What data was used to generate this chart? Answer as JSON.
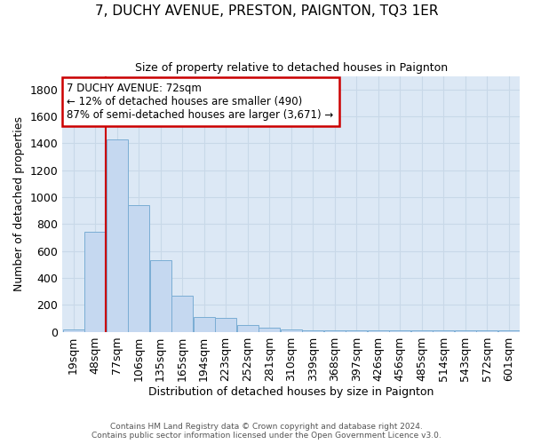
{
  "title": "7, DUCHY AVENUE, PRESTON, PAIGNTON, TQ3 1ER",
  "subtitle": "Size of property relative to detached houses in Paignton",
  "xlabel": "Distribution of detached houses by size in Paignton",
  "ylabel": "Number of detached properties",
  "footer_line1": "Contains HM Land Registry data © Crown copyright and database right 2024.",
  "footer_line2": "Contains public sector information licensed under the Open Government Licence v3.0.",
  "categories": [
    "19sqm",
    "48sqm",
    "77sqm",
    "106sqm",
    "135sqm",
    "165sqm",
    "194sqm",
    "223sqm",
    "252sqm",
    "281sqm",
    "310sqm",
    "339sqm",
    "368sqm",
    "397sqm",
    "426sqm",
    "456sqm",
    "485sqm",
    "514sqm",
    "543sqm",
    "572sqm",
    "601sqm"
  ],
  "values": [
    20,
    740,
    1430,
    940,
    530,
    270,
    110,
    100,
    50,
    30,
    20,
    10,
    10,
    10,
    10,
    10,
    10,
    10,
    10,
    10,
    10
  ],
  "bar_color": "#c5d8f0",
  "bar_edge_color": "#7aadd4",
  "plot_bg_color": "#dce8f5",
  "fig_bg_color": "#ffffff",
  "grid_color": "#c8d8e8",
  "ylim": [
    0,
    1900
  ],
  "yticks": [
    0,
    200,
    400,
    600,
    800,
    1000,
    1200,
    1400,
    1600,
    1800
  ],
  "property_line_color": "#cc0000",
  "property_line_x": 1.5,
  "annotation_line1": "7 DUCHY AVENUE: 72sqm",
  "annotation_line2": "← 12% of detached houses are smaller (490)",
  "annotation_line3": "87% of semi-detached houses are larger (3,671) →",
  "annotation_box_facecolor": "#ffffff",
  "annotation_box_edgecolor": "#cc0000"
}
